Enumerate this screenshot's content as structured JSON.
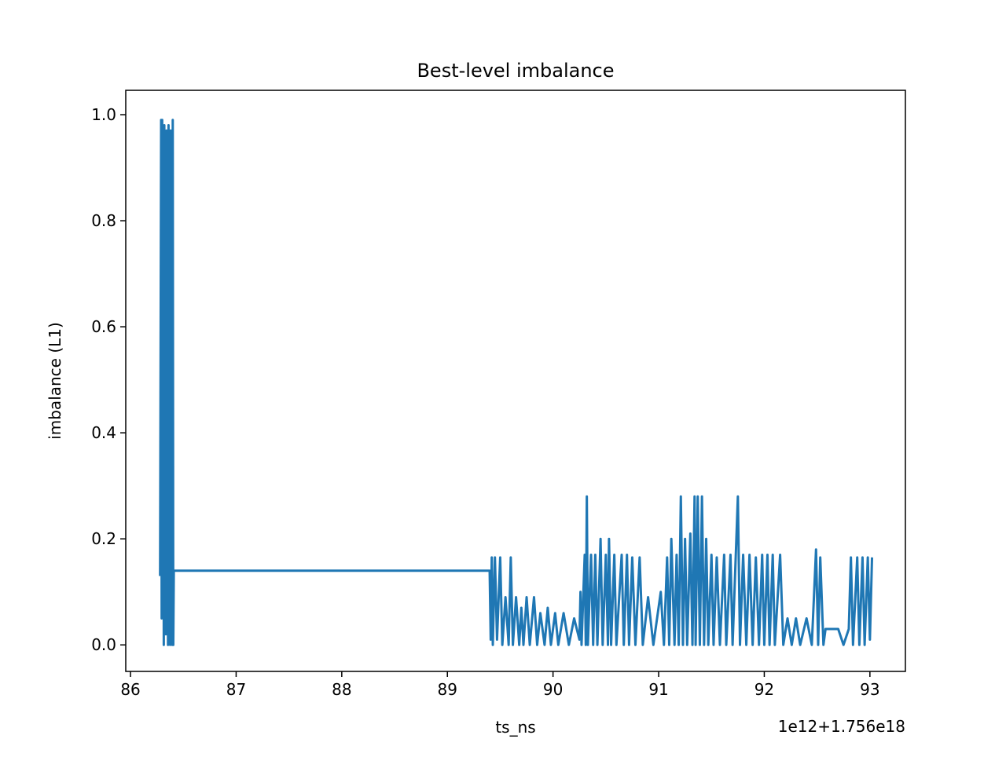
{
  "chart_data": {
    "type": "line",
    "title": "Best-level imbalance",
    "xlabel": "ts_ns",
    "ylabel": "imbalance (L1)",
    "x_offset_label": "1e12+1.756e18",
    "xlim": [
      85.955,
      93.336
    ],
    "ylim": [
      -0.05,
      1.046
    ],
    "xticks": [
      86,
      87,
      88,
      89,
      90,
      91,
      92,
      93
    ],
    "yticks": [
      {
        "value": 0,
        "label": "0.0"
      },
      {
        "value": 0.2,
        "label": "0.2"
      },
      {
        "value": 0.4,
        "label": "0.4"
      },
      {
        "value": 0.6,
        "label": "0.6"
      },
      {
        "value": 0.8,
        "label": "0.8"
      },
      {
        "value": 1,
        "label": "1.0"
      }
    ],
    "series": [
      {
        "name": "imbalance",
        "color": "#1f77b4",
        "x": [
          86.28,
          86.29,
          86.295,
          86.3,
          86.305,
          86.31,
          86.315,
          86.32,
          86.325,
          86.33,
          86.335,
          86.34,
          86.345,
          86.35,
          86.355,
          86.36,
          86.365,
          86.37,
          86.375,
          86.38,
          86.385,
          86.39,
          86.395,
          86.4,
          86.405,
          86.41,
          89.4,
          89.41,
          89.42,
          89.43,
          89.45,
          89.47,
          89.5,
          89.52,
          89.55,
          89.58,
          89.6,
          89.62,
          89.65,
          89.68,
          89.7,
          89.72,
          89.75,
          89.78,
          89.82,
          89.85,
          89.88,
          89.92,
          89.95,
          89.98,
          90.02,
          90.05,
          90.1,
          90.15,
          90.2,
          90.25,
          90.26,
          90.27,
          90.3,
          90.31,
          90.32,
          90.33,
          90.36,
          90.38,
          90.4,
          90.42,
          90.45,
          90.47,
          90.5,
          90.52,
          90.53,
          90.55,
          90.58,
          90.6,
          90.65,
          90.67,
          90.7,
          90.72,
          90.75,
          90.78,
          90.82,
          90.85,
          90.9,
          90.95,
          91.02,
          91.05,
          91.08,
          91.1,
          91.12,
          91.15,
          91.17,
          91.19,
          91.21,
          91.23,
          91.25,
          91.27,
          91.3,
          91.32,
          91.34,
          91.35,
          91.37,
          91.39,
          91.41,
          91.43,
          91.45,
          91.47,
          91.5,
          91.52,
          91.55,
          91.58,
          91.62,
          91.64,
          91.68,
          91.7,
          91.75,
          91.77,
          91.8,
          91.83,
          91.86,
          91.89,
          91.92,
          91.95,
          91.98,
          92.0,
          92.03,
          92.05,
          92.08,
          92.1,
          92.15,
          92.18,
          92.22,
          92.26,
          92.3,
          92.34,
          92.4,
          92.45,
          92.49,
          92.51,
          92.53,
          92.56,
          92.58,
          92.7,
          92.75,
          92.8,
          92.82,
          92.84,
          92.88,
          92.9,
          92.93,
          92.95,
          92.98,
          93.0,
          93.02
        ],
        "values": [
          0.13,
          0.99,
          0.05,
          0.99,
          0.1,
          0.95,
          0.0,
          0.98,
          0.2,
          0.9,
          0.02,
          0.97,
          0.1,
          0.85,
          0.0,
          0.98,
          0.05,
          0.93,
          0.0,
          0.97,
          0.1,
          0.9,
          0.0,
          0.99,
          0.0,
          0.14,
          0.14,
          0.01,
          0.165,
          0.0,
          0.165,
          0.01,
          0.165,
          0.0,
          0.09,
          0.0,
          0.165,
          0.0,
          0.09,
          0.0,
          0.07,
          0.0,
          0.09,
          0.0,
          0.09,
          0.0,
          0.06,
          0.0,
          0.07,
          0.0,
          0.06,
          0.0,
          0.06,
          0.0,
          0.05,
          0.01,
          0.1,
          0.0,
          0.17,
          0.0,
          0.28,
          0.0,
          0.17,
          0.0,
          0.17,
          0.0,
          0.2,
          0.0,
          0.17,
          0.0,
          0.2,
          0.0,
          0.17,
          0.0,
          0.17,
          0.0,
          0.17,
          0.0,
          0.165,
          0.0,
          0.165,
          0.0,
          0.09,
          0.0,
          0.1,
          0.0,
          0.165,
          0.0,
          0.2,
          0.0,
          0.17,
          0.0,
          0.28,
          0.0,
          0.2,
          0.0,
          0.21,
          0.0,
          0.28,
          0.0,
          0.28,
          0.0,
          0.28,
          0.0,
          0.2,
          0.0,
          0.17,
          0.0,
          0.165,
          0.0,
          0.17,
          0.0,
          0.17,
          0.0,
          0.28,
          0.0,
          0.17,
          0.0,
          0.17,
          0.0,
          0.165,
          0.0,
          0.17,
          0.0,
          0.17,
          0.0,
          0.17,
          0.0,
          0.17,
          0.0,
          0.05,
          0.0,
          0.05,
          0.0,
          0.05,
          0.0,
          0.18,
          0.0,
          0.165,
          0.0,
          0.03,
          0.03,
          0.0,
          0.03,
          0.165,
          0.0,
          0.165,
          0.0,
          0.165,
          0.0,
          0.165,
          0.01,
          0.165
        ]
      }
    ]
  }
}
